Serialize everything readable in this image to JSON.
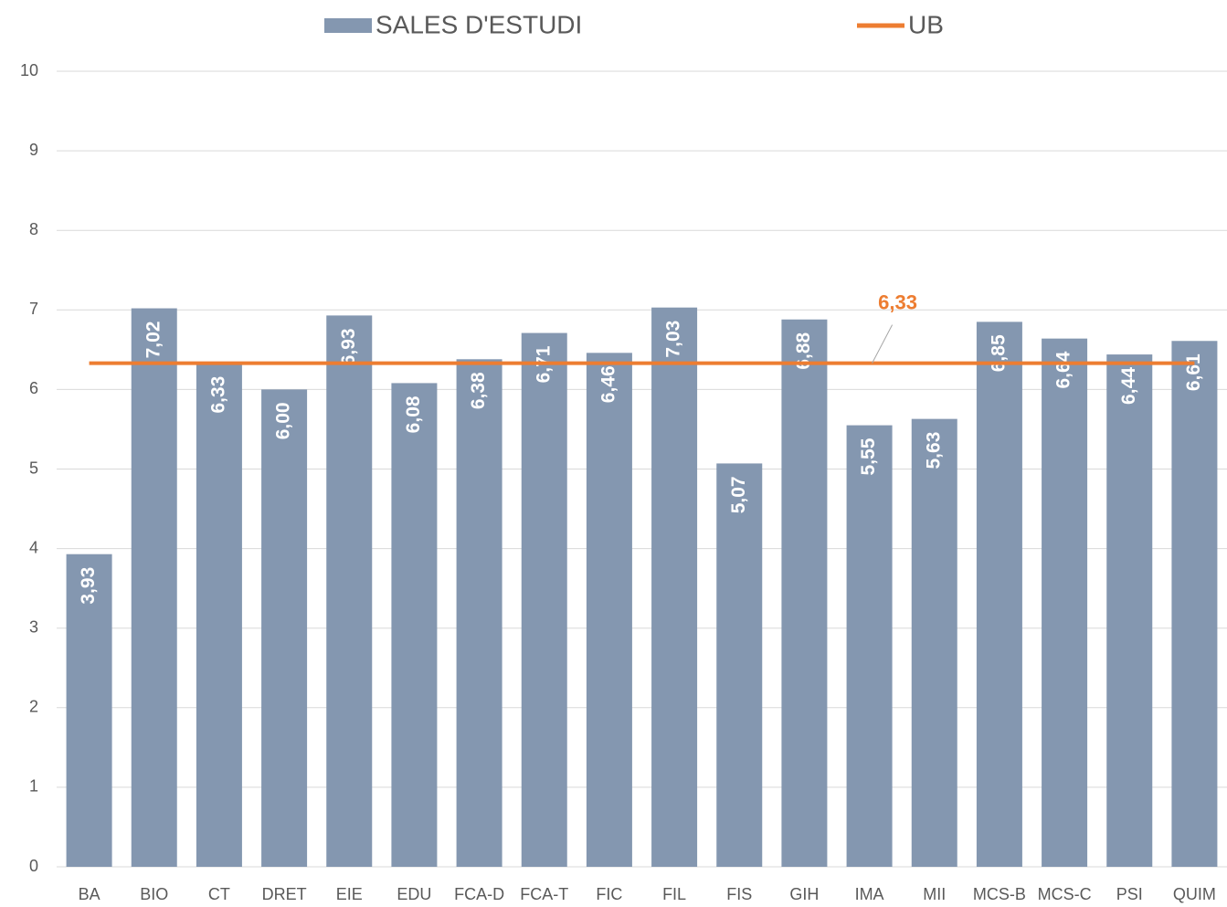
{
  "chart_data": {
    "type": "bar",
    "categories": [
      "BA",
      "BIO",
      "CT",
      "DRET",
      "EIE",
      "EDU",
      "FCA-D",
      "FCA-T",
      "FIC",
      "FIL",
      "FIS",
      "GIH",
      "IMA",
      "MII",
      "MCS-B",
      "MCS-C",
      "PSI",
      "QUIM"
    ],
    "series": [
      {
        "name": "SALES D'ESTUDI",
        "type": "bar",
        "color": "#8497b0",
        "values": [
          3.93,
          7.02,
          6.33,
          6.0,
          6.93,
          6.08,
          6.38,
          6.71,
          6.46,
          7.03,
          5.07,
          6.88,
          5.55,
          5.63,
          6.85,
          6.64,
          6.44,
          6.61
        ],
        "value_labels": [
          "3,93",
          "7,02",
          "6,33",
          "6,00",
          "6,93",
          "6,08",
          "6,38",
          "6,71",
          "6,46",
          "7,03",
          "5,07",
          "6,88",
          "5,55",
          "5,63",
          "6,85",
          "6,64",
          "6,44",
          "6,61"
        ]
      },
      {
        "name": "UB",
        "type": "line",
        "color": "#ed7d31",
        "values": [
          6.33,
          6.33,
          6.33,
          6.33,
          6.33,
          6.33,
          6.33,
          6.33,
          6.33,
          6.33,
          6.33,
          6.33,
          6.33,
          6.33,
          6.33,
          6.33,
          6.33,
          6.33
        ],
        "value_labels": [
          null,
          null,
          null,
          null,
          null,
          null,
          null,
          null,
          null,
          null,
          null,
          null,
          "6,33",
          null,
          null,
          null,
          null,
          null
        ]
      }
    ],
    "ylim": [
      0,
      10
    ],
    "yticks": [
      0,
      1,
      2,
      3,
      4,
      5,
      6,
      7,
      8,
      9,
      10
    ],
    "grid": true,
    "legend": "top"
  }
}
